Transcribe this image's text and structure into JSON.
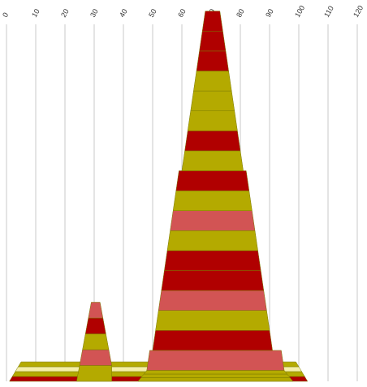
{
  "chart_data": {
    "type": "bar",
    "title": "",
    "xlabel": "",
    "ylabel": "",
    "xlim": [
      0,
      120
    ],
    "x_ticks": [
      "0",
      "10",
      "20",
      "30",
      "40",
      "50",
      "60",
      "70",
      "80",
      "90",
      "100",
      "110",
      "120"
    ],
    "grid": true,
    "legend": "none",
    "colors": {
      "dark_red": "#B00000",
      "olive": "#B4AA00",
      "salmon": "#D25454",
      "pale_yellow": "#F5EFA8"
    },
    "peaks": [
      {
        "name_visible": false,
        "layers": [
          {
            "left": 1,
            "right": 103,
            "color": "dark_red"
          },
          {
            "left": 2,
            "right": 102,
            "color": "olive"
          },
          {
            "left": 3,
            "right": 101,
            "color": "pale_yellow"
          },
          {
            "left": 4,
            "right": 100,
            "color": "olive"
          }
        ]
      },
      {
        "layers": [
          {
            "left": 24,
            "right": 36,
            "color": "olive"
          },
          {
            "left": 25,
            "right": 36,
            "color": "salmon"
          },
          {
            "left": 26,
            "right": 35,
            "color": "olive"
          },
          {
            "left": 27,
            "right": 34,
            "color": "dark_red"
          },
          {
            "left": 28,
            "right": 33,
            "color": "salmon"
          }
        ]
      },
      {
        "layers": [
          {
            "left": 45,
            "right": 98,
            "color": "olive"
          },
          {
            "left": 46,
            "right": 97,
            "color": "olive"
          },
          {
            "left": 47,
            "right": 96,
            "color": "olive"
          },
          {
            "left": 48,
            "right": 95,
            "color": "salmon"
          },
          {
            "left": 50,
            "right": 91,
            "color": "dark_red"
          },
          {
            "left": 51,
            "right": 90,
            "color": "olive"
          },
          {
            "left": 52,
            "right": 89,
            "color": "salmon"
          },
          {
            "left": 53,
            "right": 88,
            "color": "dark_red"
          },
          {
            "left": 54,
            "right": 87,
            "color": "dark_red"
          },
          {
            "left": 55,
            "right": 86,
            "color": "olive"
          },
          {
            "left": 56,
            "right": 85,
            "color": "salmon"
          },
          {
            "left": 57,
            "right": 84,
            "color": "olive"
          },
          {
            "left": 58,
            "right": 83,
            "color": "dark_red"
          },
          {
            "left": 60,
            "right": 81,
            "color": "olive"
          },
          {
            "left": 61,
            "right": 80,
            "color": "dark_red"
          },
          {
            "left": 62,
            "right": 79,
            "color": "olive"
          },
          {
            "left": 63,
            "right": 78,
            "color": "olive"
          },
          {
            "left": 64,
            "right": 77,
            "color": "olive"
          },
          {
            "left": 65,
            "right": 76,
            "color": "dark_red"
          },
          {
            "left": 66,
            "right": 75,
            "color": "dark_red"
          },
          {
            "left": 67,
            "right": 74,
            "color": "dark_red"
          }
        ]
      }
    ]
  }
}
